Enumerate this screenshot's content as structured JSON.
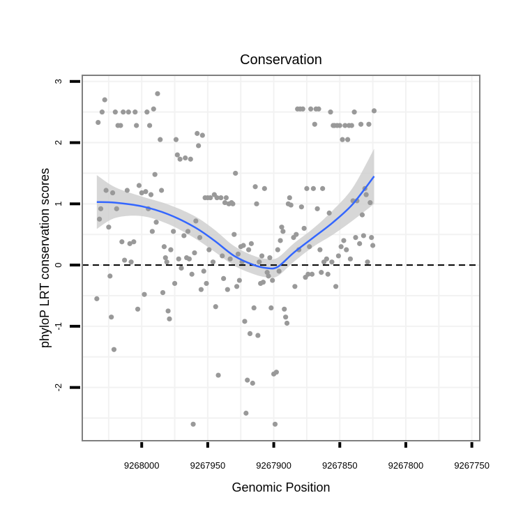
{
  "chart_data": {
    "type": "scatter",
    "title": "Conservation",
    "xlabel": "Genomic Position",
    "ylabel": "phyloP LRT conservation scores",
    "xlim": [
      9268045,
      9267744
    ],
    "ylim": [
      -2.87,
      3.1
    ],
    "x_reversed": true,
    "x_ticks": [
      9268000,
      9267950,
      9267900,
      9267850,
      9267800,
      9267750
    ],
    "x_tick_labels": [
      "9268000",
      "9267950",
      "9267900",
      "9267850",
      "9267800",
      "9267750"
    ],
    "y_ticks": [
      -2,
      -1,
      0,
      1,
      2,
      3
    ],
    "y_tick_labels": [
      "-2",
      "-1",
      "0",
      "1",
      "2",
      "3"
    ],
    "reference_line": {
      "y": 0,
      "style": "dashed",
      "color": "#000000"
    },
    "colors": {
      "points": "#999999",
      "smooth": "#3366ff",
      "band": "#d0d0d0",
      "panel_border": "#7f7f7f",
      "grid": "#f2f2f2"
    },
    "points": [
      [
        9268034,
        -0.55
      ],
      [
        9268033,
        2.33
      ],
      [
        9268032,
        0.75
      ],
      [
        9268031,
        0.92
      ],
      [
        9268030,
        2.5
      ],
      [
        9268028,
        2.7
      ],
      [
        9268027,
        1.22
      ],
      [
        9268025,
        0.62
      ],
      [
        9268024,
        -0.18
      ],
      [
        9268023,
        -0.85
      ],
      [
        9268022,
        1.18
      ],
      [
        9268021,
        -1.38
      ],
      [
        9268020,
        2.5
      ],
      [
        9268019,
        0.92
      ],
      [
        9268018,
        2.28
      ],
      [
        9268016,
        2.28
      ],
      [
        9268015,
        0.38
      ],
      [
        9268014,
        2.5
      ],
      [
        9268013,
        0.08
      ],
      [
        9268011,
        1.22
      ],
      [
        9268010,
        2.5
      ],
      [
        9268009,
        0.35
      ],
      [
        9268008,
        0.05
      ],
      [
        9268006,
        0.38
      ],
      [
        9268005,
        2.5
      ],
      [
        9268004,
        2.28
      ],
      [
        9268003,
        -0.72
      ],
      [
        9268002,
        1.3
      ],
      [
        9268000,
        1.18
      ],
      [
        9267998,
        -0.48
      ],
      [
        9267997,
        1.2
      ],
      [
        9267996,
        2.5
      ],
      [
        9267995,
        0.92
      ],
      [
        9267994,
        2.28
      ],
      [
        9267993,
        1.15
      ],
      [
        9267992,
        0.55
      ],
      [
        9267991,
        2.55
      ],
      [
        9267990,
        1.48
      ],
      [
        9267989,
        0.7
      ],
      [
        9267988,
        2.8
      ],
      [
        9267986,
        2.05
      ],
      [
        9267985,
        1.22
      ],
      [
        9267984,
        -0.45
      ],
      [
        9267983,
        0.3
      ],
      [
        9267982,
        0.12
      ],
      [
        9267981,
        0.05
      ],
      [
        9267980,
        -0.75
      ],
      [
        9267979,
        -0.88
      ],
      [
        9267978,
        0.25
      ],
      [
        9267976,
        0.55
      ],
      [
        9267975,
        -0.3
      ],
      [
        9267974,
        2.05
      ],
      [
        9267973,
        1.8
      ],
      [
        9267972,
        0.1
      ],
      [
        9267971,
        1.73
      ],
      [
        9267970,
        -0.05
      ],
      [
        9267968,
        0.48
      ],
      [
        9267967,
        1.75
      ],
      [
        9267966,
        0.12
      ],
      [
        9267965,
        0.55
      ],
      [
        9267964,
        0.1
      ],
      [
        9267963,
        1.73
      ],
      [
        9267962,
        -0.15
      ],
      [
        9267961,
        -2.6
      ],
      [
        9267960,
        0.2
      ],
      [
        9267959,
        0.72
      ],
      [
        9267958,
        2.15
      ],
      [
        9267957,
        1.95
      ],
      [
        9267956,
        0.45
      ],
      [
        9267955,
        -0.4
      ],
      [
        9267954,
        2.12
      ],
      [
        9267953,
        -0.1
      ],
      [
        9267952,
        1.1
      ],
      [
        9267951,
        -0.3
      ],
      [
        9267950,
        1.1
      ],
      [
        9267949,
        0.25
      ],
      [
        9267948,
        1.1
      ],
      [
        9267946,
        0.05
      ],
      [
        9267945,
        1.15
      ],
      [
        9267944,
        -0.68
      ],
      [
        9267943,
        1.1
      ],
      [
        9267942,
        -1.8
      ],
      [
        9267940,
        1.1
      ],
      [
        9267939,
        0.15
      ],
      [
        9267938,
        -0.22
      ],
      [
        9267937,
        1.02
      ],
      [
        9267936,
        1.1
      ],
      [
        9267935,
        -0.4
      ],
      [
        9267934,
        1.0
      ],
      [
        9267933,
        0.1
      ],
      [
        9267932,
        1.02
      ],
      [
        9267931,
        1.0
      ],
      [
        9267930,
        0.5
      ],
      [
        9267929,
        1.5
      ],
      [
        9267928,
        -0.35
      ],
      [
        9267927,
        0.18
      ],
      [
        9267926,
        -0.25
      ],
      [
        9267925,
        0.3
      ],
      [
        9267924,
        0.05
      ],
      [
        9267923,
        0.32
      ],
      [
        9267922,
        -0.92
      ],
      [
        9267921,
        -2.42
      ],
      [
        9267920,
        -1.88
      ],
      [
        9267919,
        0.25
      ],
      [
        9267918,
        -1.12
      ],
      [
        9267917,
        0.35
      ],
      [
        9267916,
        -1.93
      ],
      [
        9267915,
        -0.7
      ],
      [
        9267914,
        1.28
      ],
      [
        9267913,
        1.0
      ],
      [
        9267912,
        -1.15
      ],
      [
        9267911,
        0.05
      ],
      [
        9267910,
        -0.3
      ],
      [
        9267909,
        0.15
      ],
      [
        9267908,
        -0.28
      ],
      [
        9267907,
        1.25
      ],
      [
        9267905,
        -0.12
      ],
      [
        9267904,
        -0.18
      ],
      [
        9267903,
        0.12
      ],
      [
        9267902,
        -0.7
      ],
      [
        9267901,
        -0.25
      ],
      [
        9267900,
        -1.78
      ],
      [
        9267899,
        -2.6
      ],
      [
        9267898,
        -1.75
      ],
      [
        9267897,
        0.25
      ],
      [
        9267896,
        -0.1
      ],
      [
        9267895,
        0.4
      ],
      [
        9267894,
        0.62
      ],
      [
        9267893,
        0.55
      ],
      [
        9267892,
        -0.72
      ],
      [
        9267891,
        -0.85
      ],
      [
        9267890,
        -0.95
      ],
      [
        9267889,
        1.0
      ],
      [
        9267888,
        1.1
      ],
      [
        9267887,
        0.98
      ],
      [
        9267885,
        0.45
      ],
      [
        9267884,
        -0.35
      ],
      [
        9267883,
        0.5
      ],
      [
        9267882,
        2.55
      ],
      [
        9267881,
        0.25
      ],
      [
        9267880,
        2.55
      ],
      [
        9267879,
        0.95
      ],
      [
        9267878,
        2.55
      ],
      [
        9267877,
        0.6
      ],
      [
        9267876,
        -0.2
      ],
      [
        9267875,
        1.25
      ],
      [
        9267874,
        -0.15
      ],
      [
        9267873,
        0.3
      ],
      [
        9267872,
        2.55
      ],
      [
        9267871,
        -0.15
      ],
      [
        9267870,
        1.25
      ],
      [
        9267869,
        2.3
      ],
      [
        9267868,
        2.55
      ],
      [
        9267867,
        0.92
      ],
      [
        9267866,
        2.55
      ],
      [
        9267865,
        0.25
      ],
      [
        9267864,
        -0.12
      ],
      [
        9267863,
        1.25
      ],
      [
        9267862,
        0.05
      ],
      [
        9267860,
        0.1
      ],
      [
        9267859,
        -0.15
      ],
      [
        9267858,
        0.85
      ],
      [
        9267857,
        2.5
      ],
      [
        9267856,
        0.05
      ],
      [
        9267855,
        2.28
      ],
      [
        9267854,
        2.28
      ],
      [
        9267853,
        -0.35
      ],
      [
        9267852,
        2.28
      ],
      [
        9267851,
        0.15
      ],
      [
        9267850,
        2.28
      ],
      [
        9267849,
        0.3
      ],
      [
        9267848,
        2.05
      ],
      [
        9267847,
        0.4
      ],
      [
        9267846,
        2.28
      ],
      [
        9267845,
        0.25
      ],
      [
        9267844,
        2.05
      ],
      [
        9267843,
        2.28
      ],
      [
        9267842,
        0.1
      ],
      [
        9267841,
        2.28
      ],
      [
        9267840,
        1.05
      ],
      [
        9267839,
        2.5
      ],
      [
        9267838,
        0.45
      ],
      [
        9267837,
        1.05
      ],
      [
        9267835,
        0.35
      ],
      [
        9267834,
        2.3
      ],
      [
        9267833,
        0.82
      ],
      [
        9267832,
        0.48
      ],
      [
        9267831,
        1.25
      ],
      [
        9267830,
        1.15
      ],
      [
        9267829,
        0.05
      ],
      [
        9267828,
        2.3
      ],
      [
        9267827,
        1.02
      ],
      [
        9267826,
        0.45
      ],
      [
        9267825,
        0.32
      ],
      [
        9267824,
        2.52
      ]
    ],
    "smooth": [
      [
        9268034,
        1.03
      ],
      [
        9268020,
        1.02
      ],
      [
        9268000,
        0.96
      ],
      [
        9267980,
        0.83
      ],
      [
        9267960,
        0.62
      ],
      [
        9267945,
        0.4
      ],
      [
        9267930,
        0.15
      ],
      [
        9267915,
        0.0
      ],
      [
        9267905,
        -0.05
      ],
      [
        9267897,
        -0.03
      ],
      [
        9267885,
        0.2
      ],
      [
        9267870,
        0.45
      ],
      [
        9267855,
        0.7
      ],
      [
        9267840,
        1.0
      ],
      [
        9267824,
        1.45
      ]
    ],
    "band_upper": [
      [
        9268034,
        1.47
      ],
      [
        9268020,
        1.27
      ],
      [
        9268000,
        1.12
      ],
      [
        9267980,
        0.99
      ],
      [
        9267960,
        0.8
      ],
      [
        9267945,
        0.58
      ],
      [
        9267930,
        0.31
      ],
      [
        9267915,
        0.15
      ],
      [
        9267905,
        0.1
      ],
      [
        9267897,
        0.12
      ],
      [
        9267885,
        0.35
      ],
      [
        9267870,
        0.6
      ],
      [
        9267855,
        0.9
      ],
      [
        9267840,
        1.27
      ],
      [
        9267824,
        1.9
      ]
    ],
    "band_lower": [
      [
        9268034,
        0.59
      ],
      [
        9268020,
        0.77
      ],
      [
        9268000,
        0.8
      ],
      [
        9267980,
        0.67
      ],
      [
        9267960,
        0.44
      ],
      [
        9267945,
        0.22
      ],
      [
        9267930,
        -0.01
      ],
      [
        9267915,
        -0.15
      ],
      [
        9267905,
        -0.2
      ],
      [
        9267897,
        -0.18
      ],
      [
        9267885,
        0.05
      ],
      [
        9267870,
        0.3
      ],
      [
        9267855,
        0.5
      ],
      [
        9267840,
        0.73
      ],
      [
        9267824,
        1.0
      ]
    ]
  }
}
